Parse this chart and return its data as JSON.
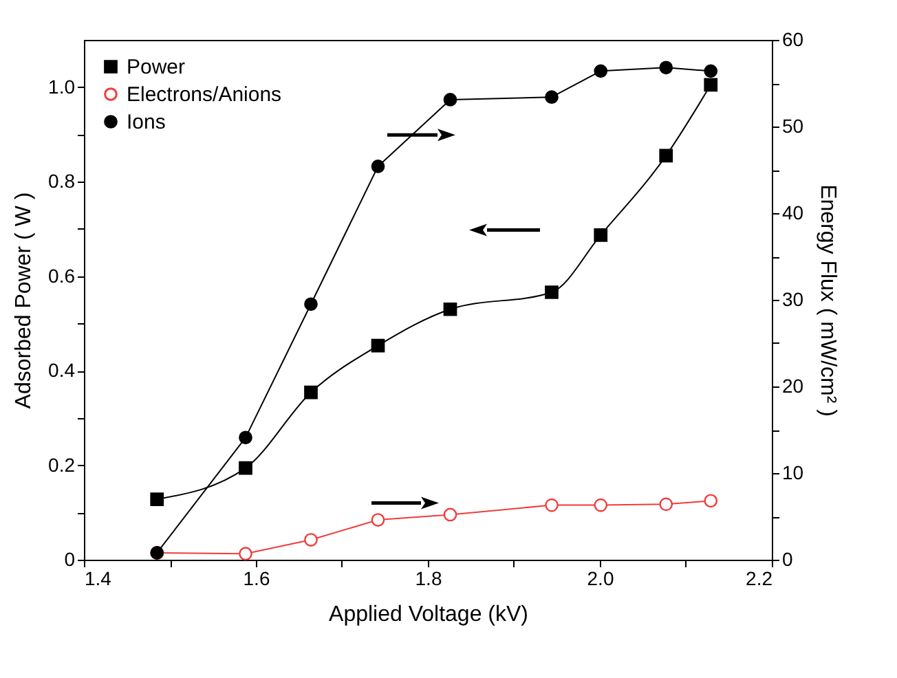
{
  "chart_data": {
    "type": "line",
    "xlabel": "Applied Voltage (kV)",
    "ylabel": "Adsorbed Power ( W )",
    "y2label": "Energy Flux ( mW/cm² )",
    "x": [
      1.485,
      1.588,
      1.664,
      1.742,
      1.826,
      1.944,
      2.001,
      2.077,
      2.129
    ],
    "series": [
      {
        "name": "Power",
        "color": "#000000",
        "marker": "square",
        "values": [
          0.128,
          0.194,
          0.354,
          0.453,
          0.53,
          0.566,
          0.687,
          0.855,
          1.005
        ]
      },
      {
        "name": "Electrons/Anions",
        "color": "#f03c3c",
        "marker": "circle",
        "axis": "y2",
        "values": [
          0.8,
          0.7,
          2.3,
          4.6,
          5.2,
          6.3,
          6.3,
          6.4,
          6.8
        ]
      },
      {
        "name": "Ions",
        "color": "#000000",
        "marker": "circle",
        "axis": "y2",
        "values": [
          0.8,
          14.1,
          29.5,
          45.4,
          53.1,
          53.4,
          56.4,
          56.8,
          56.4
        ]
      }
    ],
    "xlim": [
      1.4,
      2.2
    ],
    "xticks": [
      1.4,
      {
        "value": 1.5,
        "label": null
      },
      1.6,
      {
        "value": 1.7,
        "label": null
      },
      1.8,
      {
        "value": 1.9,
        "label": null
      },
      {
        "value": 2,
        "label": "2.0"
      },
      {
        "value": 2.1,
        "label": null
      },
      2.2
    ],
    "ylim": [
      0,
      1.1
    ],
    "yticks": [
      0,
      {
        "value": 0.1,
        "label": null
      },
      0.2,
      {
        "value": 0.3,
        "label": null
      },
      0.4,
      {
        "value": 0.5,
        "label": null
      },
      0.6,
      {
        "value": 0.7,
        "label": null
      },
      0.8,
      {
        "value": 0.9,
        "label": null
      },
      {
        "value": 1,
        "label": "1.0"
      }
    ],
    "y2lim": [
      0,
      60
    ],
    "y2ticks": [
      0,
      {
        "value": 5,
        "label": null
      },
      10,
      {
        "value": 15,
        "label": null
      },
      20,
      {
        "value": 25,
        "label": null
      },
      30,
      {
        "value": 35,
        "label": null
      },
      40,
      {
        "value": 45,
        "label": null
      },
      50,
      {
        "value": 55,
        "label": null
      },
      60
    ],
    "legend": "top left",
    "grid": false,
    "line_style": "solid"
  }
}
